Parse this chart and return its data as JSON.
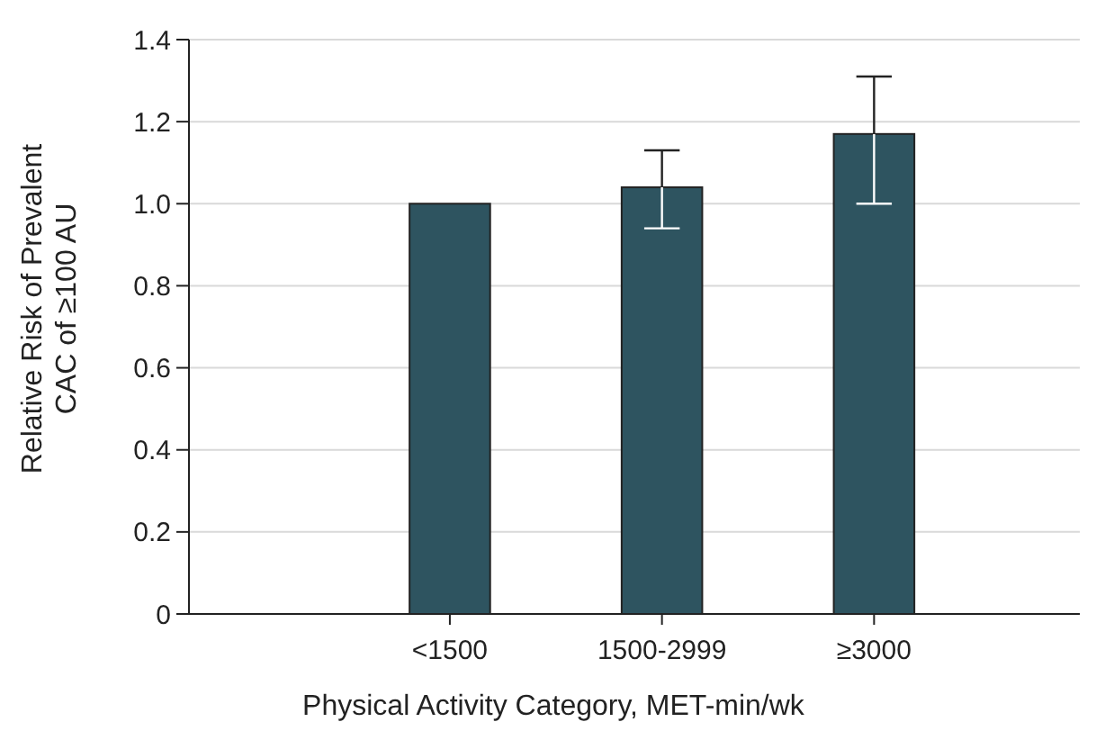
{
  "chart_data": {
    "type": "bar",
    "categories": [
      "<1500",
      "1500-2999",
      "≥3000"
    ],
    "values": [
      1,
      1.04,
      1.17
    ],
    "errors": [
      null,
      [
        0.94,
        1.13
      ],
      [
        1.0,
        1.31
      ]
    ],
    "color": "#2e5460",
    "xlabel": "Physical Activity Category, MET-min/wk",
    "ylabel": "Relative Risk of Prevalent\nCAC of ≥100 AU",
    "ylim": [
      0,
      1.4
    ],
    "yticks": [
      0,
      0.2,
      0.4,
      0.6,
      0.8,
      {
        "value": 1,
        "label": "1.0"
      },
      1.2,
      1.4
    ],
    "grid": "y"
  }
}
